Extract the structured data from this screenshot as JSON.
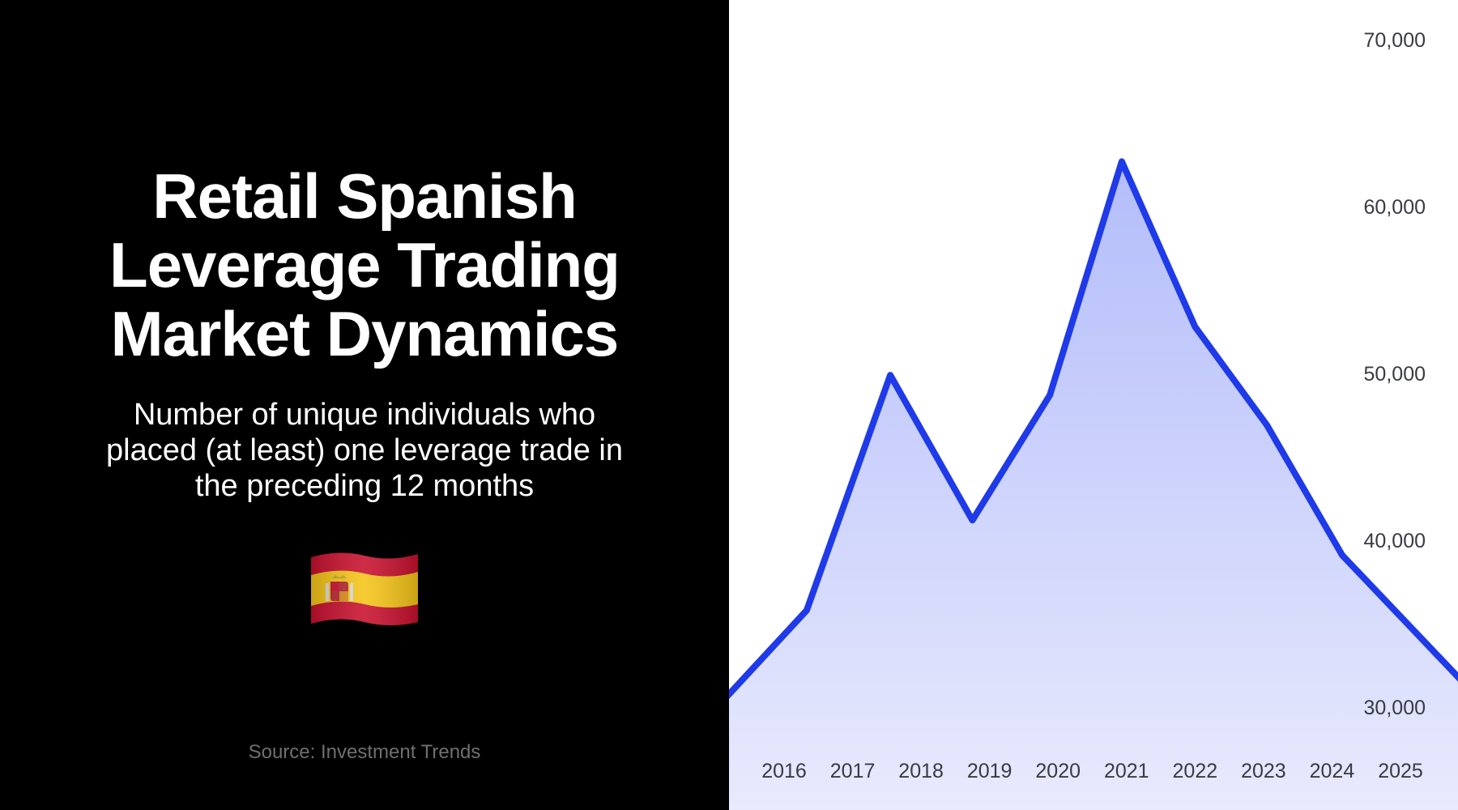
{
  "left_panel": {
    "title": "Retail Spanish\nLeverage Trading\nMarket Dynamics",
    "subtitle": "Number of unique individuals who\nplaced (at least) one leverage trade in\nthe preceding 12 months",
    "flag_icon": "spain-flag-icon",
    "source": "Source: Investment Trends"
  },
  "colors": {
    "background_left": "#000000",
    "line": "#1f3ae8",
    "fill_top": "#b3bdfa",
    "fill_bottom": "#e8eafd"
  },
  "chart_data": {
    "type": "area",
    "x_ticks": [
      "2016",
      "2017",
      "2018",
      "2019",
      "2020",
      "2021",
      "2022",
      "2023",
      "2024",
      "2025"
    ],
    "y_ticks": [
      "30,000",
      "40,000",
      "50,000",
      "60,000",
      "70,000"
    ],
    "ylim": [
      30000,
      70000
    ],
    "grid": false,
    "series": [
      {
        "x": [
          2015.45,
          2016.33,
          2017.55,
          2018.75,
          2019.88,
          2020.93,
          2022.0,
          2023.05,
          2024.15,
          2025.1
        ],
        "y": [
          31900,
          35800,
          49900,
          41200,
          48700,
          62700,
          52800,
          46900,
          39100,
          35000
        ]
      }
    ]
  }
}
